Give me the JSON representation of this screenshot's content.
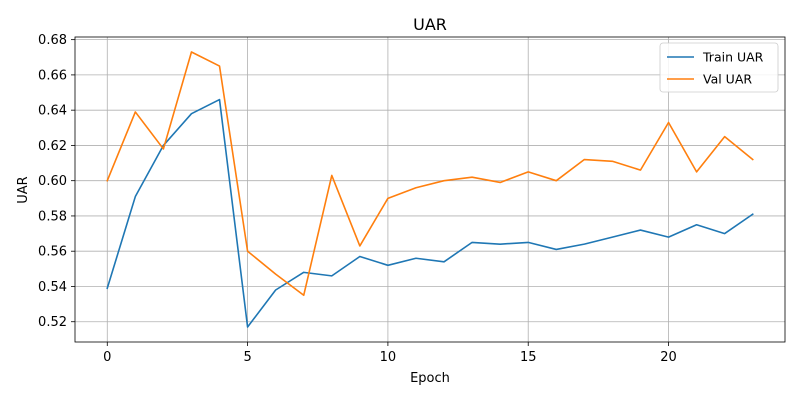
{
  "chart_data": {
    "type": "line",
    "title": "UAR",
    "xlabel": "Epoch",
    "ylabel": "UAR",
    "xlim": [
      -1.15,
      24.15
    ],
    "ylim": [
      0.5085,
      0.6815
    ],
    "xticks": [
      0,
      5,
      10,
      15,
      20
    ],
    "xtick_labels": [
      "0",
      "5",
      "10",
      "15",
      "20"
    ],
    "yticks": [
      0.52,
      0.54,
      0.56,
      0.58,
      0.6,
      0.62,
      0.64,
      0.66,
      0.68
    ],
    "ytick_labels": [
      "0.52",
      "0.54",
      "0.56",
      "0.58",
      "0.60",
      "0.62",
      "0.64",
      "0.66",
      "0.68"
    ],
    "grid": true,
    "legend_position": "top-right",
    "x": [
      0,
      1,
      2,
      3,
      4,
      5,
      6,
      7,
      8,
      9,
      10,
      11,
      12,
      13,
      14,
      15,
      16,
      17,
      18,
      19,
      20,
      21,
      22,
      23
    ],
    "series": [
      {
        "name": "Train UAR",
        "color": "#1f77b4",
        "values": [
          0.539,
          0.591,
          0.62,
          0.638,
          0.646,
          0.517,
          0.538,
          0.548,
          0.546,
          0.557,
          0.552,
          0.556,
          0.554,
          0.565,
          0.564,
          0.565,
          0.561,
          0.564,
          0.568,
          0.572,
          0.568,
          0.575,
          0.57,
          0.581
        ]
      },
      {
        "name": "Val UAR",
        "color": "#ff7f0e",
        "values": [
          0.6,
          0.639,
          0.618,
          0.673,
          0.665,
          0.56,
          0.547,
          0.535,
          0.603,
          0.563,
          0.59,
          0.596,
          0.6,
          0.602,
          0.599,
          0.605,
          0.6,
          0.612,
          0.611,
          0.606,
          0.633,
          0.605,
          0.625,
          0.612
        ]
      }
    ]
  }
}
